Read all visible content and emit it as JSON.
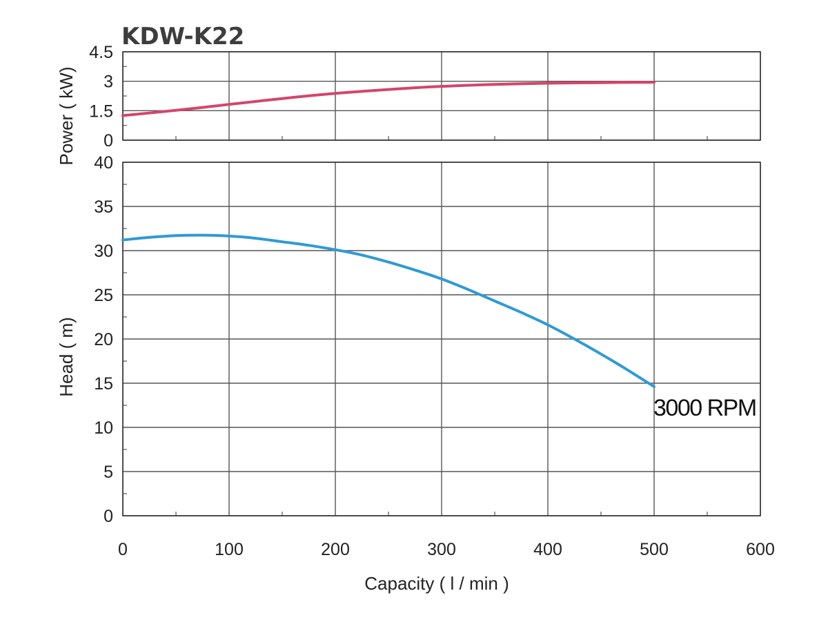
{
  "chart_data": [
    {
      "type": "line",
      "title": "KDW-K22",
      "ylabel": "Power ( kW)",
      "xlabel": "",
      "xlim": [
        0,
        600
      ],
      "ylim": [
        0,
        4.5
      ],
      "x_ticks": [
        "0",
        "100",
        "200",
        "300",
        "400",
        "500",
        "600"
      ],
      "y_ticks": [
        "0",
        "1.5",
        "3",
        "4.5"
      ],
      "y_tick_values": [
        0,
        1.5,
        3,
        4.5
      ],
      "grid": true,
      "series": [
        {
          "color": "#d4456b",
          "x": [
            0,
            50,
            100,
            150,
            200,
            250,
            300,
            350,
            400,
            450,
            500
          ],
          "y": [
            1.25,
            1.52,
            1.82,
            2.12,
            2.38,
            2.58,
            2.74,
            2.84,
            2.9,
            2.93,
            2.95
          ]
        }
      ]
    },
    {
      "type": "line",
      "title": "",
      "ylabel": "Head ( m)",
      "xlabel": "Capacity ( l / min )",
      "xlim": [
        0,
        600
      ],
      "ylim": [
        0,
        40
      ],
      "x_ticks": [
        "0",
        "100",
        "200",
        "300",
        "400",
        "500",
        "600"
      ],
      "y_ticks": [
        "0",
        "5",
        "10",
        "15",
        "20",
        "25",
        "30",
        "35",
        "40"
      ],
      "y_tick_values": [
        0,
        5,
        10,
        15,
        20,
        25,
        30,
        35,
        40
      ],
      "grid": true,
      "annotation": "3000 RPM",
      "series": [
        {
          "color": "#2f9ad6",
          "x": [
            0,
            25,
            50,
            75,
            100,
            125,
            150,
            175,
            200,
            225,
            250,
            275,
            300,
            325,
            350,
            375,
            400,
            425,
            450,
            475,
            500
          ],
          "y": [
            31.2,
            31.5,
            31.7,
            31.75,
            31.65,
            31.4,
            31.0,
            30.6,
            30.1,
            29.5,
            28.7,
            27.8,
            26.8,
            25.6,
            24.3,
            23.0,
            21.6,
            20.0,
            18.3,
            16.5,
            14.6
          ]
        }
      ]
    }
  ]
}
